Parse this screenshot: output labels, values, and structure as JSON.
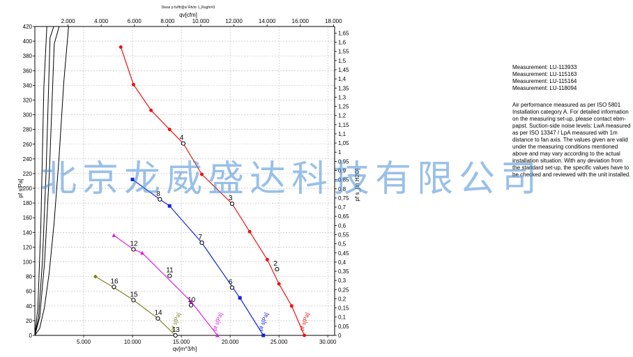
{
  "chart_data": {
    "type": "line",
    "title": "Diese p fs/ffr@s/ Rh/nr 1_Rughr#3",
    "xlabel": "qv[m^3/h]",
    "x2label": "qv[cfm]",
    "ylabel": "pf s[Pa]",
    "y2label": "pf s_[In H2O]",
    "xlim": [
      0,
      30700
    ],
    "x2lim": [
      0,
      18070
    ],
    "ylim": [
      0,
      420
    ],
    "y2lim": [
      0,
      1.686
    ],
    "xticks": [
      "5.000",
      "10.000",
      "15.000",
      "20.000",
      "25.000",
      "30.000"
    ],
    "x2ticks": [
      "2.000",
      "4.000",
      "6.000",
      "8.000",
      "10.000",
      "12.000",
      "14.000",
      "16.000",
      "18.000"
    ],
    "yticks": [
      "0",
      "20",
      "40",
      "60",
      "80",
      "100",
      "120",
      "140",
      "160",
      "180",
      "200",
      "220",
      "240",
      "260",
      "280",
      "300",
      "320",
      "340",
      "360",
      "380",
      "400",
      "420"
    ],
    "y2ticks": [
      "0",
      "0,05",
      "0,1",
      "0,15",
      "0,2",
      "0,25",
      "0,3",
      "0,35",
      "0,4",
      "0,45",
      "0,5",
      "0,55",
      "0,6",
      "0,65",
      "0,7",
      "0,75",
      "0,8",
      "0,85",
      "0,9",
      "0,95",
      "1",
      "1,05",
      "1,1",
      "1,15",
      "1,2",
      "1,25",
      "1,3",
      "1,35",
      "1,4",
      "1,45",
      "1,5",
      "1,55",
      "1,6",
      "1,65"
    ],
    "grid": true,
    "series": [
      {
        "name": "pf s[Pa]",
        "color": "#ee1111",
        "marker": "circle",
        "x": [
          8800,
          10100,
          11900,
          13800,
          15200,
          17100,
          20200,
          22000,
          23800,
          25000,
          26300,
          27600
        ],
        "y": [
          392,
          341,
          306,
          280,
          261,
          219,
          179,
          141,
          103,
          70,
          40,
          0
        ]
      },
      {
        "name": "pf s[Pa]",
        "color": "#1122dd",
        "marker": "square",
        "x": [
          10000,
          12800,
          13800,
          17100,
          21000,
          23400
        ],
        "y": [
          212,
          185,
          176,
          126,
          51,
          0
        ]
      },
      {
        "name": "pf s[Pa]",
        "color": "#e020e0",
        "marker": "triangle",
        "x": [
          8100,
          10100,
          11000,
          16000,
          18700
        ],
        "y": [
          136,
          117,
          112,
          46,
          0
        ]
      },
      {
        "name": "pf s[Pa]",
        "color": "#808020",
        "marker": "diamond",
        "x": [
          6200,
          8100,
          10100,
          12600,
          14400
        ],
        "y": [
          80,
          65,
          48,
          23,
          0
        ]
      }
    ],
    "system_curves": [
      {
        "k": 0.0003984,
        "x_end": 18400
      },
      {
        "k": 0.0001678,
        "x_end": 23300
      },
      {
        "k": 0.0001004,
        "x_end": 29800
      },
      {
        "k": 3.93e-05,
        "x_end": 29600
      }
    ],
    "operating_points": [
      {
        "label": "4",
        "x": 15200,
        "y": 261
      },
      {
        "label": "3",
        "x": 20200,
        "y": 179
      },
      {
        "label": "2",
        "x": 24800,
        "y": 90
      },
      {
        "label": "8",
        "x": 12800,
        "y": 185
      },
      {
        "label": "7",
        "x": 17100,
        "y": 126
      },
      {
        "label": "6",
        "x": 20200,
        "y": 65
      },
      {
        "label": "12",
        "x": 10100,
        "y": 117
      },
      {
        "label": "11",
        "x": 13800,
        "y": 81
      },
      {
        "label": "10",
        "x": 16000,
        "y": 41
      },
      {
        "label": "16",
        "x": 8100,
        "y": 66
      },
      {
        "label": "15",
        "x": 10100,
        "y": 48
      },
      {
        "label": "14",
        "x": 12600,
        "y": 23
      },
      {
        "label": "13",
        "x": 14400,
        "y": 0
      }
    ]
  },
  "notes": {
    "measurements": [
      "Measurement: LU-113933",
      "Measurement: LU-115163",
      "Measurement: LU-115164",
      "Measurement: LU-118094"
    ],
    "description": "Air performance measured as per ISO 5801 Installation category A. For detailed information on the measuring set-up, please contact ebm-papst. Suction-side noise levels: LwA measured as per ISO 13347 / LpA measured with 1m distance to fan axis. The values given are valid under the measuring conditions mentioned above and may vary according to the actual installation situation. With any deviation from the standard set-up, the specific values have to be checked and reviewed with the unit installed."
  },
  "watermark": "北京龙威盛达科技有限公司"
}
